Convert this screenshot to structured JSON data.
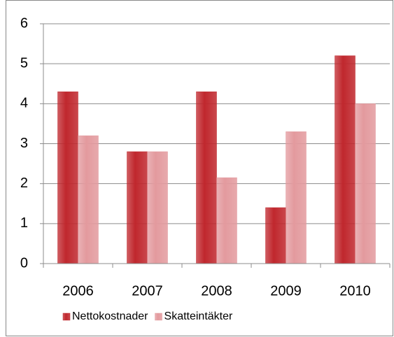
{
  "chart_data": {
    "type": "bar",
    "categories": [
      "2006",
      "2007",
      "2008",
      "2009",
      "2010"
    ],
    "series": [
      {
        "name": "Nettokostnader",
        "color": "#c0272d",
        "values": [
          4.3,
          2.8,
          4.3,
          1.4,
          5.2
        ]
      },
      {
        "name": "Skatteintäkter",
        "color": "#e39a9e",
        "values": [
          3.2,
          2.8,
          2.15,
          3.3,
          4.0
        ]
      }
    ],
    "ylim": [
      0,
      6
    ],
    "yticks": [
      0,
      1,
      2,
      3,
      4,
      5,
      6
    ],
    "grid": true,
    "legend": "bottom"
  }
}
